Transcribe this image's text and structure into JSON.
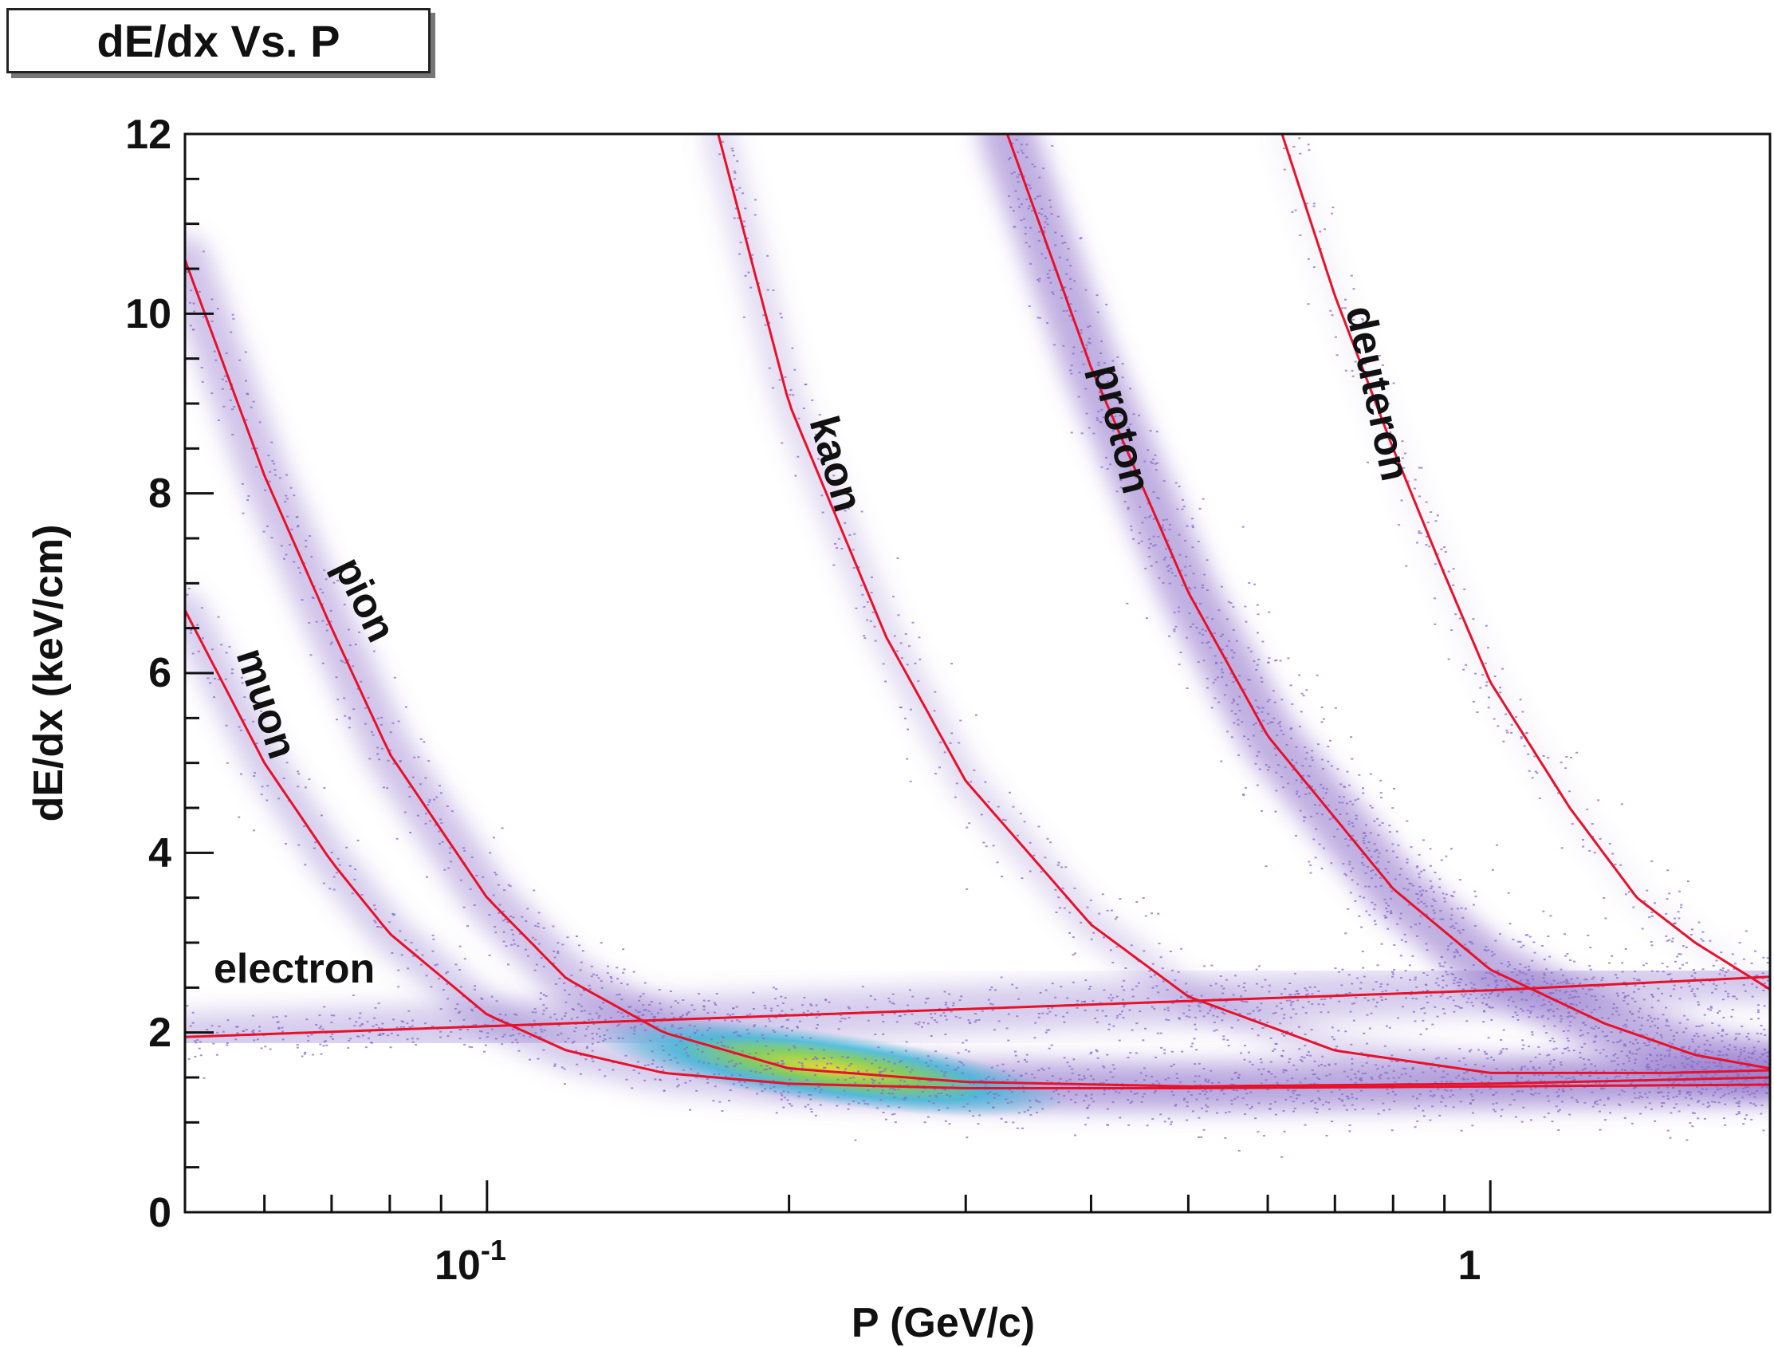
{
  "chart_data": {
    "type": "scatter",
    "title": "dE/dx Vs. P",
    "xlabel": "P (GeV/c)",
    "ylabel": "dE/dx (keV/cm)",
    "x_scale": "log",
    "xlim": [
      0.05,
      1.9
    ],
    "ylim": [
      0,
      12
    ],
    "x_tick_labels": [
      {
        "value": 0.1,
        "label": "10",
        "exp": "-1"
      },
      {
        "value": 1,
        "label": "1",
        "exp": ""
      }
    ],
    "y_ticks": [
      0,
      2,
      4,
      6,
      8,
      10,
      12
    ],
    "grid": false,
    "point_color": "#8a6cc8",
    "curve_color": "#e8102a",
    "series": [
      {
        "name": "electron",
        "points": [
          [
            0.05,
            1.95
          ],
          [
            0.1,
            2.07
          ],
          [
            0.2,
            2.19
          ],
          [
            0.5,
            2.35
          ],
          [
            1.0,
            2.47
          ],
          [
            1.9,
            2.62
          ]
        ]
      },
      {
        "name": "muon",
        "points": [
          [
            0.05,
            6.7
          ],
          [
            0.06,
            5.0
          ],
          [
            0.07,
            3.9
          ],
          [
            0.08,
            3.1
          ],
          [
            0.1,
            2.2
          ],
          [
            0.12,
            1.8
          ],
          [
            0.15,
            1.55
          ],
          [
            0.2,
            1.43
          ],
          [
            0.3,
            1.38
          ],
          [
            0.5,
            1.38
          ],
          [
            1.0,
            1.4
          ],
          [
            1.9,
            1.42
          ]
        ]
      },
      {
        "name": "pion",
        "points": [
          [
            0.05,
            10.6
          ],
          [
            0.06,
            8.2
          ],
          [
            0.07,
            6.5
          ],
          [
            0.08,
            5.1
          ],
          [
            0.1,
            3.5
          ],
          [
            0.12,
            2.6
          ],
          [
            0.15,
            2.0
          ],
          [
            0.2,
            1.6
          ],
          [
            0.3,
            1.45
          ],
          [
            0.5,
            1.4
          ],
          [
            1.0,
            1.43
          ],
          [
            1.9,
            1.5
          ]
        ]
      },
      {
        "name": "kaon",
        "points": [
          [
            0.17,
            12.0
          ],
          [
            0.2,
            9.0
          ],
          [
            0.25,
            6.4
          ],
          [
            0.3,
            4.8
          ],
          [
            0.4,
            3.2
          ],
          [
            0.5,
            2.4
          ],
          [
            0.7,
            1.8
          ],
          [
            1.0,
            1.55
          ],
          [
            1.5,
            1.55
          ],
          [
            1.9,
            1.58
          ]
        ]
      },
      {
        "name": "proton",
        "points": [
          [
            0.33,
            12.0
          ],
          [
            0.4,
            9.4
          ],
          [
            0.5,
            6.9
          ],
          [
            0.6,
            5.3
          ],
          [
            0.8,
            3.6
          ],
          [
            1.0,
            2.7
          ],
          [
            1.3,
            2.1
          ],
          [
            1.6,
            1.75
          ],
          [
            1.9,
            1.6
          ]
        ]
      },
      {
        "name": "deuteron",
        "points": [
          [
            0.62,
            12.0
          ],
          [
            0.7,
            10.2
          ],
          [
            0.8,
            8.5
          ],
          [
            0.9,
            7.1
          ],
          [
            1.0,
            5.9
          ],
          [
            1.2,
            4.5
          ],
          [
            1.4,
            3.5
          ],
          [
            1.6,
            3.0
          ],
          [
            1.9,
            2.48
          ]
        ]
      }
    ]
  }
}
